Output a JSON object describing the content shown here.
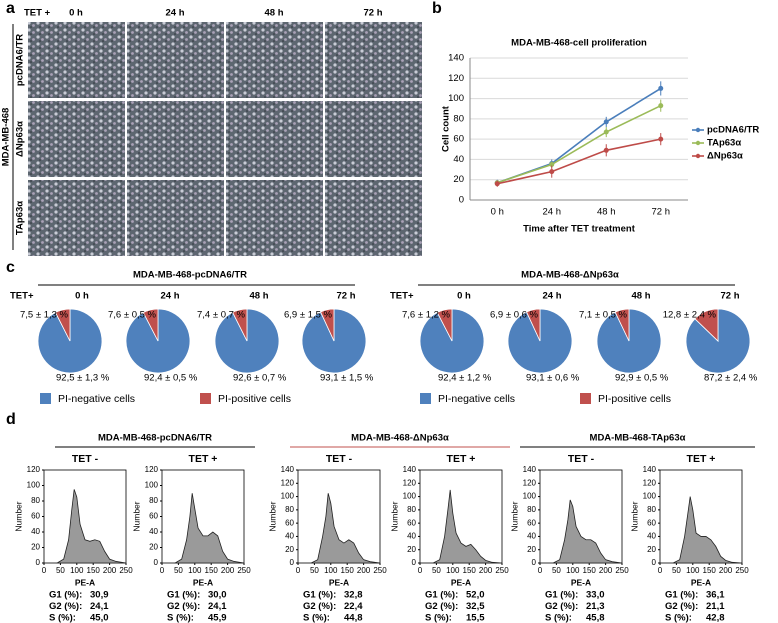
{
  "panel_a": {
    "label": "a",
    "condition": "TET +",
    "columns": [
      "0 h",
      "24 h",
      "48 h",
      "72 h"
    ],
    "rows": [
      "pcDNA6/TR",
      "ΔNp63α",
      "TAp63α"
    ],
    "cell_line": "MDA-MB-468"
  },
  "panel_b": {
    "label": "b"
  },
  "panel_c": {
    "label": "c",
    "groups": [
      {
        "title": "MDA-MB-468-pcDNA6/TR",
        "condition": "TET+"
      },
      {
        "title": "MDA-MB-468-ΔNp63α",
        "condition": "TET+"
      }
    ]
  },
  "panel_d": {
    "label": "d",
    "groups": [
      "MDA-MB-468-pcDNA6/TR",
      "MDA-MB-468-ΔNp63α",
      "MDA-MB-468-TAp63α"
    ]
  },
  "chart_data": [
    {
      "type": "line",
      "title": "MDA-MB-468-cell proliferation",
      "categories": [
        "0 h",
        "24 h",
        "48 h",
        "72 h"
      ],
      "series": [
        {
          "name": "pcDNA6/TR",
          "color": "#4a7ebb",
          "values": [
            17,
            36,
            77,
            110
          ],
          "errors": [
            3,
            4,
            5,
            7
          ]
        },
        {
          "name": "TAp63α",
          "color": "#9bbb59",
          "values": [
            17,
            35,
            67,
            93
          ],
          "errors": [
            2,
            3,
            5,
            6
          ]
        },
        {
          "name": "ΔNp63α",
          "color": "#be4b48",
          "values": [
            16,
            28,
            49,
            60
          ],
          "errors": [
            3,
            6,
            6,
            6
          ]
        }
      ],
      "ylim": [
        0,
        140
      ],
      "yticks": [
        0,
        20,
        40,
        60,
        80,
        100,
        120,
        140
      ],
      "xlabel": "Time after TET treatment",
      "ylabel": "Cell count",
      "grid": true,
      "legend": "right"
    },
    {
      "type": "pie",
      "title": "0 h",
      "categories": [
        "PI-negative cells",
        "PI-positive cells"
      ],
      "values": [
        92.5,
        7.5
      ],
      "value_labels": [
        "92,5 ± 1,3 %",
        "7,5 ± 1,3 %"
      ],
      "colors": [
        "#4f81bd",
        "#c0504d"
      ]
    },
    {
      "type": "pie",
      "title": "24 h",
      "categories": [
        "PI-negative cells",
        "PI-positive cells"
      ],
      "values": [
        92.4,
        7.6
      ],
      "value_labels": [
        "92,4 ± 0,5 %",
        "7,6 ± 0,5 %"
      ],
      "colors": [
        "#4f81bd",
        "#c0504d"
      ]
    },
    {
      "type": "pie",
      "title": "48 h",
      "categories": [
        "PI-negative cells",
        "PI-positive cells"
      ],
      "values": [
        92.6,
        7.4
      ],
      "value_labels": [
        "92,6 ± 0,7 %",
        "7,4 ± 0,7 %"
      ],
      "colors": [
        "#4f81bd",
        "#c0504d"
      ]
    },
    {
      "type": "pie",
      "title": "72 h",
      "categories": [
        "PI-negative cells",
        "PI-positive cells"
      ],
      "values": [
        93.1,
        6.9
      ],
      "value_labels": [
        "93,1 ± 1,5 %",
        "6,9 ± 1,5 %"
      ],
      "colors": [
        "#4f81bd",
        "#c0504d"
      ]
    },
    {
      "type": "pie",
      "title": "0 h",
      "categories": [
        "PI-negative cells",
        "PI-positive cells"
      ],
      "values": [
        92.4,
        7.6
      ],
      "value_labels": [
        "92,4 ± 1,2 %",
        "7,6 ± 1,2 %"
      ],
      "colors": [
        "#4f81bd",
        "#c0504d"
      ]
    },
    {
      "type": "pie",
      "title": "24 h",
      "categories": [
        "PI-negative cells",
        "PI-positive cells"
      ],
      "values": [
        93.1,
        6.9
      ],
      "value_labels": [
        "93,1 ± 0,6 %",
        "6,9 ± 0,6 %"
      ],
      "colors": [
        "#4f81bd",
        "#c0504d"
      ]
    },
    {
      "type": "pie",
      "title": "48 h",
      "categories": [
        "PI-negative cells",
        "PI-positive cells"
      ],
      "values": [
        92.9,
        7.1
      ],
      "value_labels": [
        "92,9 ± 0,5 %",
        "7,1 ± 0,5 %"
      ],
      "colors": [
        "#4f81bd",
        "#c0504d"
      ]
    },
    {
      "type": "pie",
      "title": "72 h",
      "categories": [
        "PI-negative cells",
        "PI-positive cells"
      ],
      "values": [
        87.2,
        12.8
      ],
      "value_labels": [
        "87,2 ± 2,4 %",
        "12,8 ± 2,4 %"
      ],
      "colors": [
        "#4f81bd",
        "#c0504d"
      ]
    },
    {
      "type": "area",
      "title": "TET -",
      "x": [
        40,
        60,
        75,
        85,
        92,
        100,
        110,
        125,
        140,
        155,
        170,
        185,
        200,
        220,
        250
      ],
      "values": [
        0,
        5,
        30,
        70,
        95,
        85,
        50,
        30,
        28,
        30,
        28,
        15,
        5,
        2,
        0
      ],
      "xlim": [
        0,
        250
      ],
      "xticks": [
        0,
        50,
        100,
        150,
        200,
        250
      ],
      "ylim": [
        0,
        120
      ],
      "yticks": [
        0,
        20,
        40,
        60,
        80,
        100,
        120
      ],
      "xlabel": "PE-A",
      "ylabel": "Number",
      "color": "#9a9a9a",
      "stats": [
        [
          "G1 (%):",
          "30,9"
        ],
        [
          "G2 (%):",
          "24,1"
        ],
        [
          "S  (%):",
          "45,0"
        ]
      ]
    },
    {
      "type": "area",
      "title": "TET +",
      "x": [
        40,
        60,
        75,
        85,
        92,
        100,
        110,
        125,
        140,
        155,
        170,
        185,
        200,
        220,
        250
      ],
      "values": [
        0,
        5,
        30,
        60,
        90,
        70,
        45,
        35,
        35,
        40,
        35,
        15,
        5,
        2,
        0
      ],
      "xlim": [
        0,
        250
      ],
      "xticks": [
        0,
        50,
        100,
        150,
        200,
        250
      ],
      "ylim": [
        0,
        120
      ],
      "yticks": [
        0,
        20,
        40,
        60,
        80,
        100,
        120
      ],
      "xlabel": "PE-A",
      "ylabel": "Number",
      "color": "#9a9a9a",
      "stats": [
        [
          "G1 (%):",
          "30,0"
        ],
        [
          "G2 (%):",
          "24,1"
        ],
        [
          "S  (%):",
          "45,9"
        ]
      ]
    },
    {
      "type": "area",
      "title": "TET -",
      "x": [
        40,
        60,
        75,
        85,
        92,
        100,
        110,
        125,
        140,
        155,
        170,
        185,
        200,
        220,
        250
      ],
      "values": [
        0,
        5,
        40,
        70,
        105,
        90,
        55,
        35,
        30,
        35,
        30,
        15,
        5,
        2,
        0
      ],
      "xlim": [
        0,
        250
      ],
      "xticks": [
        0,
        50,
        100,
        150,
        200,
        250
      ],
      "ylim": [
        0,
        140
      ],
      "yticks": [
        0,
        20,
        40,
        60,
        80,
        100,
        120,
        140
      ],
      "xlabel": "PE-A",
      "ylabel": "Number",
      "color": "#9a9a9a",
      "stats": [
        [
          "G1 (%):",
          "32,8"
        ],
        [
          "G2 (%):",
          "22,4"
        ],
        [
          "S  (%):",
          "44,8"
        ]
      ]
    },
    {
      "type": "area",
      "title": "TET +",
      "x": [
        40,
        60,
        75,
        85,
        92,
        100,
        110,
        125,
        140,
        155,
        170,
        185,
        200,
        220,
        250
      ],
      "values": [
        0,
        5,
        40,
        80,
        110,
        75,
        45,
        30,
        25,
        28,
        20,
        10,
        4,
        1,
        0
      ],
      "xlim": [
        0,
        250
      ],
      "xticks": [
        0,
        50,
        100,
        150,
        200,
        250
      ],
      "ylim": [
        0,
        140
      ],
      "yticks": [
        0,
        20,
        40,
        60,
        80,
        100,
        120,
        140
      ],
      "xlabel": "PE-A",
      "ylabel": "Number",
      "color": "#9a9a9a",
      "stats": [
        [
          "G1 (%):",
          "52,0"
        ],
        [
          "G2 (%):",
          "32,5"
        ],
        [
          "S  (%):",
          "15,5"
        ]
      ]
    },
    {
      "type": "area",
      "title": "TET -",
      "x": [
        40,
        60,
        75,
        85,
        92,
        100,
        110,
        125,
        140,
        155,
        170,
        185,
        200,
        220,
        250
      ],
      "values": [
        0,
        5,
        35,
        65,
        95,
        85,
        55,
        40,
        35,
        35,
        30,
        15,
        5,
        2,
        0
      ],
      "xlim": [
        0,
        250
      ],
      "xticks": [
        0,
        50,
        100,
        150,
        200,
        250
      ],
      "ylim": [
        0,
        140
      ],
      "yticks": [
        0,
        20,
        40,
        60,
        80,
        100,
        120,
        140
      ],
      "xlabel": "PE-A",
      "ylabel": "Number",
      "color": "#9a9a9a",
      "stats": [
        [
          "G1 (%):",
          "33,0"
        ],
        [
          "G2 (%):",
          "21,3"
        ],
        [
          "S  (%):",
          "45,8"
        ]
      ]
    },
    {
      "type": "area",
      "title": "TET +",
      "x": [
        40,
        60,
        75,
        85,
        92,
        100,
        110,
        125,
        140,
        155,
        170,
        185,
        200,
        220,
        250
      ],
      "values": [
        0,
        5,
        40,
        75,
        100,
        80,
        45,
        40,
        40,
        35,
        25,
        10,
        4,
        1,
        0
      ],
      "xlim": [
        0,
        250
      ],
      "xticks": [
        0,
        50,
        100,
        150,
        200,
        250
      ],
      "ylim": [
        0,
        140
      ],
      "yticks": [
        0,
        20,
        40,
        60,
        80,
        100,
        120,
        140
      ],
      "xlabel": "PE-A",
      "ylabel": "Number",
      "color": "#9a9a9a",
      "stats": [
        [
          "G1 (%):",
          "36,1"
        ],
        [
          "G2 (%):",
          "21,1"
        ],
        [
          "S  (%):",
          "42,8"
        ]
      ]
    }
  ]
}
